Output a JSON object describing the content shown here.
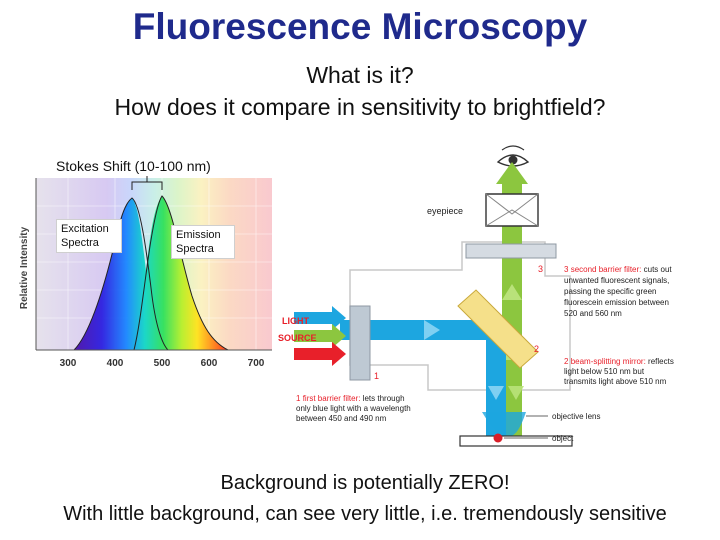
{
  "title": "Fluorescence Microscopy",
  "subtitle_1": "What is it?",
  "subtitle_2": "How does it compare in sensitivity to brightfield?",
  "spectrum": {
    "stokes_label": "Stokes Shift (10-100 nm)",
    "y_label": "Relative Intensity",
    "x_ticks": [
      "300",
      "400",
      "500",
      "600",
      "700"
    ],
    "excitation_label": "Excitation Spectra",
    "emission_label": "Emission Spectra"
  },
  "scheme": {
    "eyepiece": "eyepiece",
    "light_line1": "LIGHT",
    "light_line2": "SOURCE",
    "num_1": "1",
    "num_2": "2",
    "num_3": "3",
    "first_filter_num": "1",
    "first_filter_title": "first barrier filter:",
    "first_filter_rest": " lets through",
    "first_filter_line2": "only blue light with a wavelength",
    "first_filter_line3": "between 450 and 490 nm",
    "mirror_num": "2",
    "mirror_title": "beam-splitting mirror:",
    "mirror_rest": " reflects",
    "mirror_line2": "light below 510 nm but",
    "mirror_line3": "transmits light above 510 nm",
    "second_filter_num": "3",
    "second_filter_title": "second barrier filter:",
    "second_filter_rest": " cuts out",
    "second_filter_line2": "unwanted fluorescent signals,",
    "second_filter_line3": "passing the specific green",
    "second_filter_line4": "fluorescein emission between",
    "second_filter_line5": "520 and 560 nm",
    "objective_lens": "objective lens",
    "object": "object",
    "accent_red": "#e8202a",
    "accent_blue": "#1da6e0",
    "accent_green": "#8cc63f"
  },
  "bottom_1": "Background is potentially ZERO!",
  "bottom_2": "With little background, can see very little, i.e. tremendously sensitive"
}
